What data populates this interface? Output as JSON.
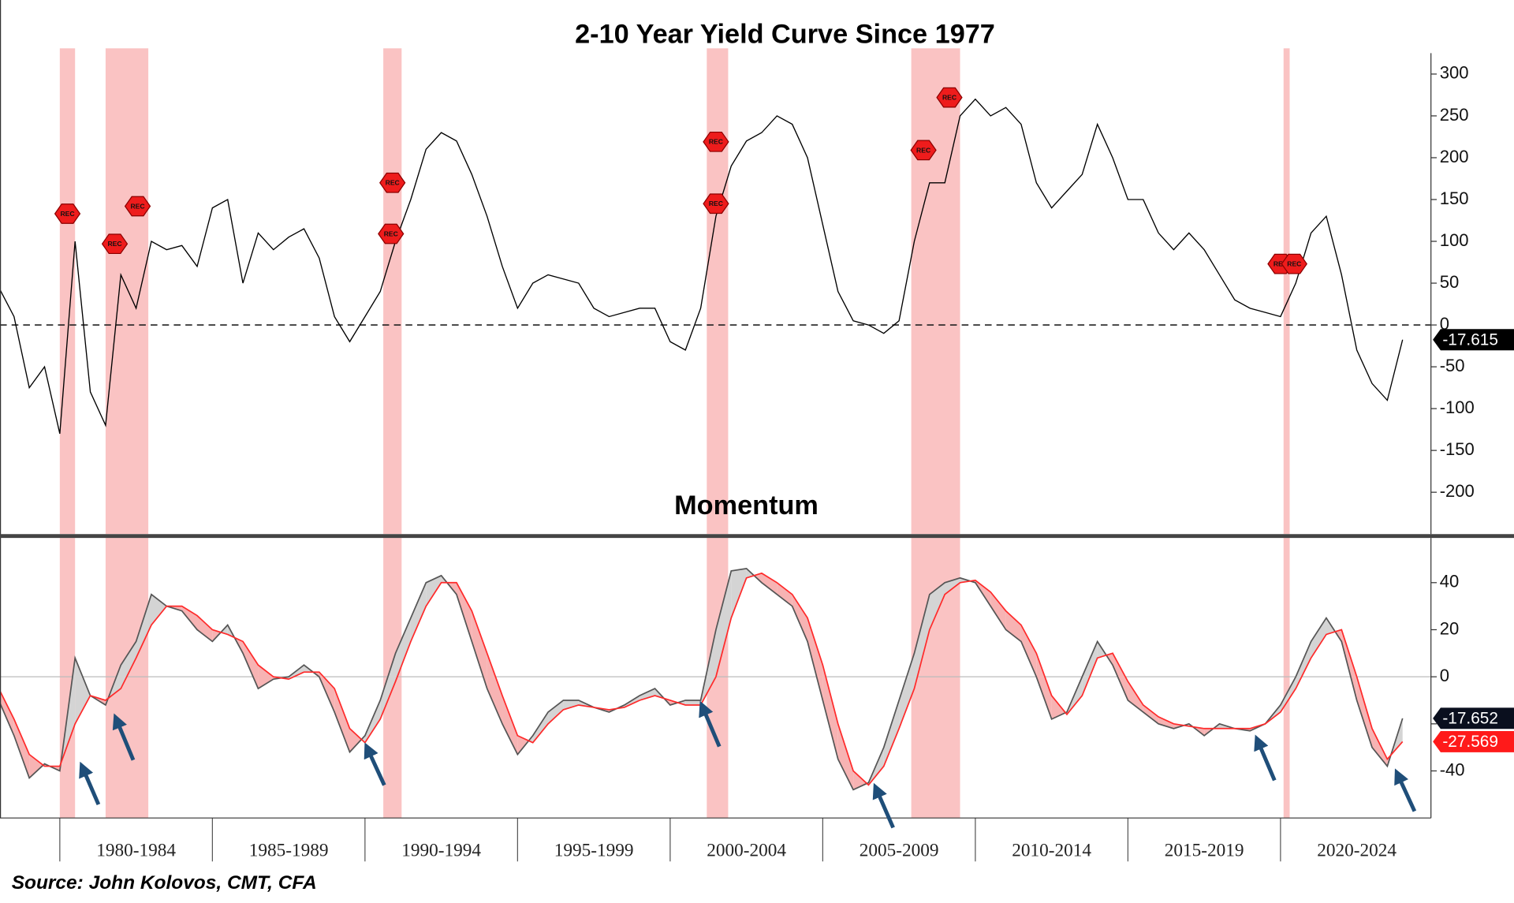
{
  "source": "Source: John Kolovos, CMT, CFA",
  "chart_data": [
    {
      "type": "line",
      "title": "2-10 Year Yield Curve Since 1977",
      "x": [
        1978,
        1978.5,
        1979,
        1979.5,
        1980,
        1980.5,
        1981,
        1981.5,
        1982,
        1982.5,
        1983,
        1983.5,
        1984,
        1984.5,
        1985,
        1985.5,
        1986,
        1986.5,
        1987,
        1987.5,
        1988,
        1988.5,
        1989,
        1989.5,
        1990,
        1990.5,
        1991,
        1991.5,
        1992,
        1992.5,
        1993,
        1993.5,
        1994,
        1994.5,
        1995,
        1995.5,
        1996,
        1996.5,
        1997,
        1997.5,
        1998,
        1998.5,
        1999,
        1999.5,
        2000,
        2000.5,
        2001,
        2001.5,
        2002,
        2002.5,
        2003,
        2003.5,
        2004,
        2004.5,
        2005,
        2005.5,
        2006,
        2006.5,
        2007,
        2007.5,
        2008,
        2008.5,
        2009,
        2009.5,
        2010,
        2010.5,
        2011,
        2011.5,
        2012,
        2012.5,
        2013,
        2013.5,
        2014,
        2014.5,
        2015,
        2015.5,
        2016,
        2016.5,
        2017,
        2017.5,
        2018,
        2018.5,
        2019,
        2019.5,
        2020,
        2020.5,
        2021,
        2021.5,
        2022,
        2022.5,
        2023,
        2023.5,
        2024
      ],
      "series": [
        {
          "color": "#000000",
          "values": [
            45,
            10,
            -75,
            -50,
            -130,
            100,
            -80,
            -120,
            60,
            20,
            100,
            90,
            95,
            70,
            140,
            150,
            50,
            110,
            90,
            105,
            115,
            80,
            10,
            -20,
            10,
            40,
            100,
            150,
            210,
            230,
            220,
            180,
            130,
            70,
            20,
            50,
            60,
            55,
            50,
            20,
            10,
            15,
            20,
            20,
            -20,
            -30,
            20,
            130,
            190,
            220,
            230,
            250,
            240,
            200,
            120,
            40,
            5,
            0,
            -10,
            5,
            100,
            170,
            170,
            250,
            270,
            250,
            260,
            240,
            170,
            140,
            160,
            180,
            240,
            200,
            150,
            150,
            110,
            90,
            110,
            90,
            60,
            30,
            20,
            15,
            10,
            50,
            110,
            130,
            60,
            -30,
            -70,
            -90,
            -17.615
          ]
        }
      ],
      "xlim": [
        1978.04,
        2024.93
      ],
      "ylim": [
        -250,
        325
      ],
      "yticks": [
        -200,
        -150,
        -100,
        -50,
        0,
        50,
        100,
        150,
        200,
        250,
        300
      ],
      "zero_line": "dashed",
      "recession_color": "#f9b9b9",
      "recessions": [
        {
          "start": 1980.0,
          "end": 1980.5
        },
        {
          "start": 1981.5,
          "end": 1982.9
        },
        {
          "start": 1990.6,
          "end": 1991.2
        },
        {
          "start": 2001.2,
          "end": 2001.9
        },
        {
          "start": 2007.9,
          "end": 2009.5
        },
        {
          "start": 2020.1,
          "end": 2020.3
        }
      ],
      "annotations": [
        {
          "text": "REC",
          "x": 1980.25,
          "y": 133
        },
        {
          "text": "REC",
          "x": 1981.8,
          "y": 97
        },
        {
          "text": "REC",
          "x": 1982.55,
          "y": 142
        },
        {
          "text": "REC",
          "x": 1990.9,
          "y": 170
        },
        {
          "text": "REC",
          "x": 1990.85,
          "y": 109
        },
        {
          "text": "REC",
          "x": 2001.5,
          "y": 219
        },
        {
          "text": "REC",
          "x": 2001.5,
          "y": 145
        },
        {
          "text": "REC",
          "x": 2008.3,
          "y": 209
        },
        {
          "text": "REC",
          "x": 2009.15,
          "y": 272
        },
        {
          "text": "REC",
          "x": 2020.0,
          "y": 73
        },
        {
          "text": "REC",
          "x": 2020.45,
          "y": 73
        }
      ]
    },
    {
      "type": "line",
      "title": "Momentum",
      "x": [
        1978,
        1978.5,
        1979,
        1979.5,
        1980,
        1980.5,
        1981,
        1981.5,
        1982,
        1982.5,
        1983,
        1983.5,
        1984,
        1984.5,
        1985,
        1985.5,
        1986,
        1986.5,
        1987,
        1987.5,
        1988,
        1988.5,
        1989,
        1989.5,
        1990,
        1990.5,
        1991,
        1991.5,
        1992,
        1992.5,
        1993,
        1993.5,
        1994,
        1994.5,
        1995,
        1995.5,
        1996,
        1996.5,
        1997,
        1997.5,
        1998,
        1998.5,
        1999,
        1999.5,
        2000,
        2000.5,
        2001,
        2001.5,
        2002,
        2002.5,
        2003,
        2003.5,
        2004,
        2004.5,
        2005,
        2005.5,
        2006,
        2006.5,
        2007,
        2007.5,
        2008,
        2008.5,
        2009,
        2009.5,
        2010,
        2010.5,
        2011,
        2011.5,
        2012,
        2012.5,
        2013,
        2013.5,
        2014,
        2014.5,
        2015,
        2015.5,
        2016,
        2016.5,
        2017,
        2017.5,
        2018,
        2018.5,
        2019,
        2019.5,
        2020,
        2020.5,
        2021,
        2021.5,
        2022,
        2022.5,
        2023,
        2023.5,
        2024
      ],
      "series": [
        {
          "color": "#555555",
          "fill": "#d4d4d4",
          "label_box": "#0a0f1e",
          "values": [
            -10,
            -25,
            -43,
            -37,
            -40,
            8,
            -8,
            -12,
            5,
            15,
            35,
            30,
            28,
            20,
            15,
            22,
            10,
            -5,
            -1,
            0,
            5,
            0,
            -15,
            -32,
            -25,
            -10,
            10,
            25,
            40,
            43,
            35,
            15,
            -5,
            -20,
            -33,
            -25,
            -15,
            -10,
            -10,
            -13,
            -15,
            -12,
            -8,
            -5,
            -12,
            -10,
            -10,
            20,
            45,
            46,
            40,
            35,
            30,
            15,
            -10,
            -35,
            -48,
            -45,
            -30,
            -10,
            10,
            35,
            40,
            42,
            40,
            30,
            20,
            15,
            0,
            -18,
            -15,
            0,
            15,
            5,
            -10,
            -15,
            -20,
            -22,
            -20,
            -25,
            -20,
            -22,
            -23,
            -20,
            -12,
            0,
            15,
            25,
            15,
            -10,
            -30,
            -38,
            -17.652
          ]
        },
        {
          "color": "#ff2a2a",
          "fill": "#f7b3b3",
          "label_box": "#ff1a1a",
          "values": [
            -5,
            -18,
            -33,
            -38,
            -38,
            -20,
            -8,
            -10,
            -5,
            8,
            22,
            30,
            30,
            26,
            20,
            18,
            15,
            5,
            0,
            -1,
            2,
            2,
            -5,
            -22,
            -28,
            -18,
            -2,
            15,
            30,
            40,
            40,
            28,
            10,
            -8,
            -25,
            -28,
            -20,
            -14,
            -12,
            -13,
            -14,
            -13,
            -10,
            -8,
            -10,
            -12,
            -12,
            0,
            25,
            42,
            44,
            40,
            35,
            25,
            5,
            -20,
            -40,
            -46,
            -38,
            -22,
            -5,
            20,
            35,
            40,
            41,
            36,
            28,
            22,
            10,
            -8,
            -16,
            -8,
            8,
            10,
            -2,
            -12,
            -17,
            -20,
            -21,
            -22,
            -22,
            -22,
            -22,
            -20,
            -15,
            -5,
            8,
            18,
            20,
            0,
            -22,
            -35,
            -27.569
          ]
        }
      ],
      "xlim": [
        1978.04,
        2024.93
      ],
      "ylim": [
        -60,
        59
      ],
      "yticks": [
        -40,
        -20,
        0,
        20,
        40
      ],
      "zero_line": "solid",
      "recession_color": "#f9b9b9",
      "recessions": [
        {
          "start": 1980.0,
          "end": 1980.5
        },
        {
          "start": 1981.5,
          "end": 1982.9
        },
        {
          "start": 1990.6,
          "end": 1991.2
        },
        {
          "start": 2001.2,
          "end": 2001.9
        },
        {
          "start": 2007.9,
          "end": 2009.5
        },
        {
          "start": 2020.1,
          "end": 2020.3
        }
      ],
      "periods": [
        {
          "label": "1980-1984",
          "start": 1980,
          "end": 1985
        },
        {
          "label": "1985-1989",
          "start": 1985,
          "end": 1990
        },
        {
          "label": "1990-1994",
          "start": 1990,
          "end": 1995
        },
        {
          "label": "1995-1999",
          "start": 1995,
          "end": 2000
        },
        {
          "label": "2000-2004",
          "start": 2000,
          "end": 2005
        },
        {
          "label": "2005-2009",
          "start": 2005,
          "end": 2010
        },
        {
          "label": "2010-2014",
          "start": 2010,
          "end": 2015
        },
        {
          "label": "2015-2019",
          "start": 2015,
          "end": 2020
        },
        {
          "label": "2020-2024",
          "start": 2020,
          "end": 2025
        }
      ]
    }
  ]
}
